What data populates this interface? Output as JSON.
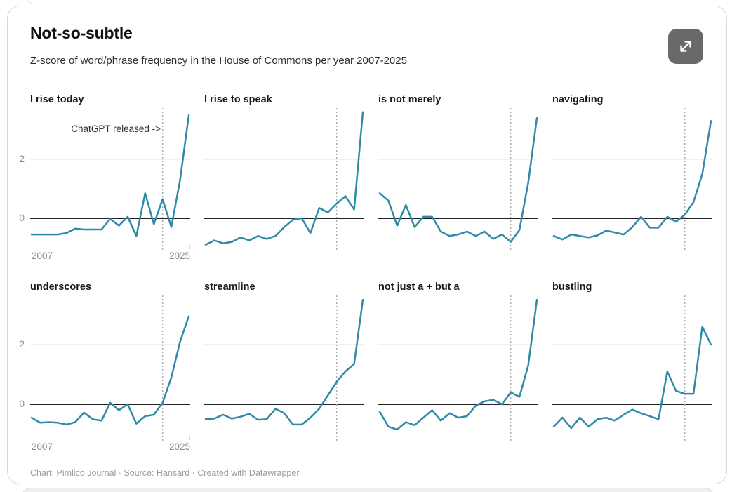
{
  "header": {
    "title": "Not-so-subtle",
    "subtitle": "Z-score of word/phrase frequency in the House of Commons per year 2007-2025"
  },
  "expand_button": {
    "icon": "expand-arrows"
  },
  "axis": {
    "x_ticks": [
      "2007",
      "2025"
    ],
    "y_ticks": [
      "2",
      "0"
    ]
  },
  "footer": "Chart: Pimlico Journal · Source: Hansard · Created with Datawrapper",
  "colors": {
    "line": "#2f8aa8",
    "zero_line": "#222222",
    "gridline": "#e3e3e3",
    "vline": "#ababab",
    "tick_label": "#8e8e8e",
    "tick": "#aaaaaa"
  },
  "chart_data": {
    "type": "line",
    "layout": "small-multiples-2x4",
    "x": [
      2007,
      2008,
      2009,
      2010,
      2011,
      2012,
      2013,
      2014,
      2015,
      2016,
      2017,
      2018,
      2019,
      2020,
      2021,
      2022,
      2023,
      2024,
      2025
    ],
    "ylim": [
      -1.05,
      3.7
    ],
    "y_gridlines": [
      0,
      2
    ],
    "vline_x": 2022,
    "vline_label": "ChatGPT released ->",
    "panels": [
      {
        "title": "I rise today",
        "values": [
          -0.55,
          -0.55,
          -0.55,
          -0.55,
          -0.5,
          -0.35,
          -0.38,
          -0.38,
          -0.38,
          -0.02,
          -0.25,
          0.05,
          -0.6,
          0.85,
          -0.2,
          0.65,
          -0.3,
          1.3,
          3.5
        ]
      },
      {
        "title": "I rise to speak",
        "values": [
          -0.9,
          -0.75,
          -0.85,
          -0.8,
          -0.65,
          -0.75,
          -0.6,
          -0.7,
          -0.6,
          -0.3,
          -0.05,
          0.0,
          -0.5,
          0.35,
          0.2,
          0.5,
          0.75,
          0.3,
          3.6
        ]
      },
      {
        "title": "is not merely",
        "values": [
          0.85,
          0.6,
          -0.25,
          0.45,
          -0.3,
          0.05,
          0.05,
          -0.45,
          -0.6,
          -0.55,
          -0.45,
          -0.6,
          -0.45,
          -0.7,
          -0.55,
          -0.8,
          -0.4,
          1.2,
          3.4
        ]
      },
      {
        "title": "navigating",
        "values": [
          -0.6,
          -0.72,
          -0.55,
          -0.6,
          -0.65,
          -0.58,
          -0.42,
          -0.48,
          -0.55,
          -0.3,
          0.05,
          -0.32,
          -0.32,
          0.05,
          -0.12,
          0.12,
          0.55,
          1.5,
          3.3
        ]
      },
      {
        "title": "underscores",
        "values": [
          -0.45,
          -0.62,
          -0.6,
          -0.62,
          -0.68,
          -0.6,
          -0.28,
          -0.5,
          -0.55,
          0.05,
          -0.2,
          0.0,
          -0.65,
          -0.4,
          -0.35,
          0.05,
          0.9,
          2.1,
          2.95
        ]
      },
      {
        "title": "streamline",
        "values": [
          -0.5,
          -0.48,
          -0.35,
          -0.48,
          -0.42,
          -0.32,
          -0.52,
          -0.5,
          -0.15,
          -0.3,
          -0.68,
          -0.68,
          -0.45,
          -0.15,
          0.3,
          0.75,
          1.1,
          1.35,
          3.5
        ]
      },
      {
        "title": "not just a + but a",
        "values": [
          -0.25,
          -0.75,
          -0.85,
          -0.6,
          -0.7,
          -0.45,
          -0.2,
          -0.55,
          -0.3,
          -0.45,
          -0.4,
          -0.05,
          0.1,
          0.15,
          0.0,
          0.4,
          0.25,
          1.3,
          3.5
        ]
      },
      {
        "title": "bustling",
        "values": [
          -0.75,
          -0.45,
          -0.8,
          -0.45,
          -0.75,
          -0.5,
          -0.45,
          -0.55,
          -0.35,
          -0.18,
          -0.3,
          -0.4,
          -0.5,
          1.1,
          0.45,
          0.35,
          0.35,
          2.6,
          2.0
        ]
      }
    ]
  }
}
